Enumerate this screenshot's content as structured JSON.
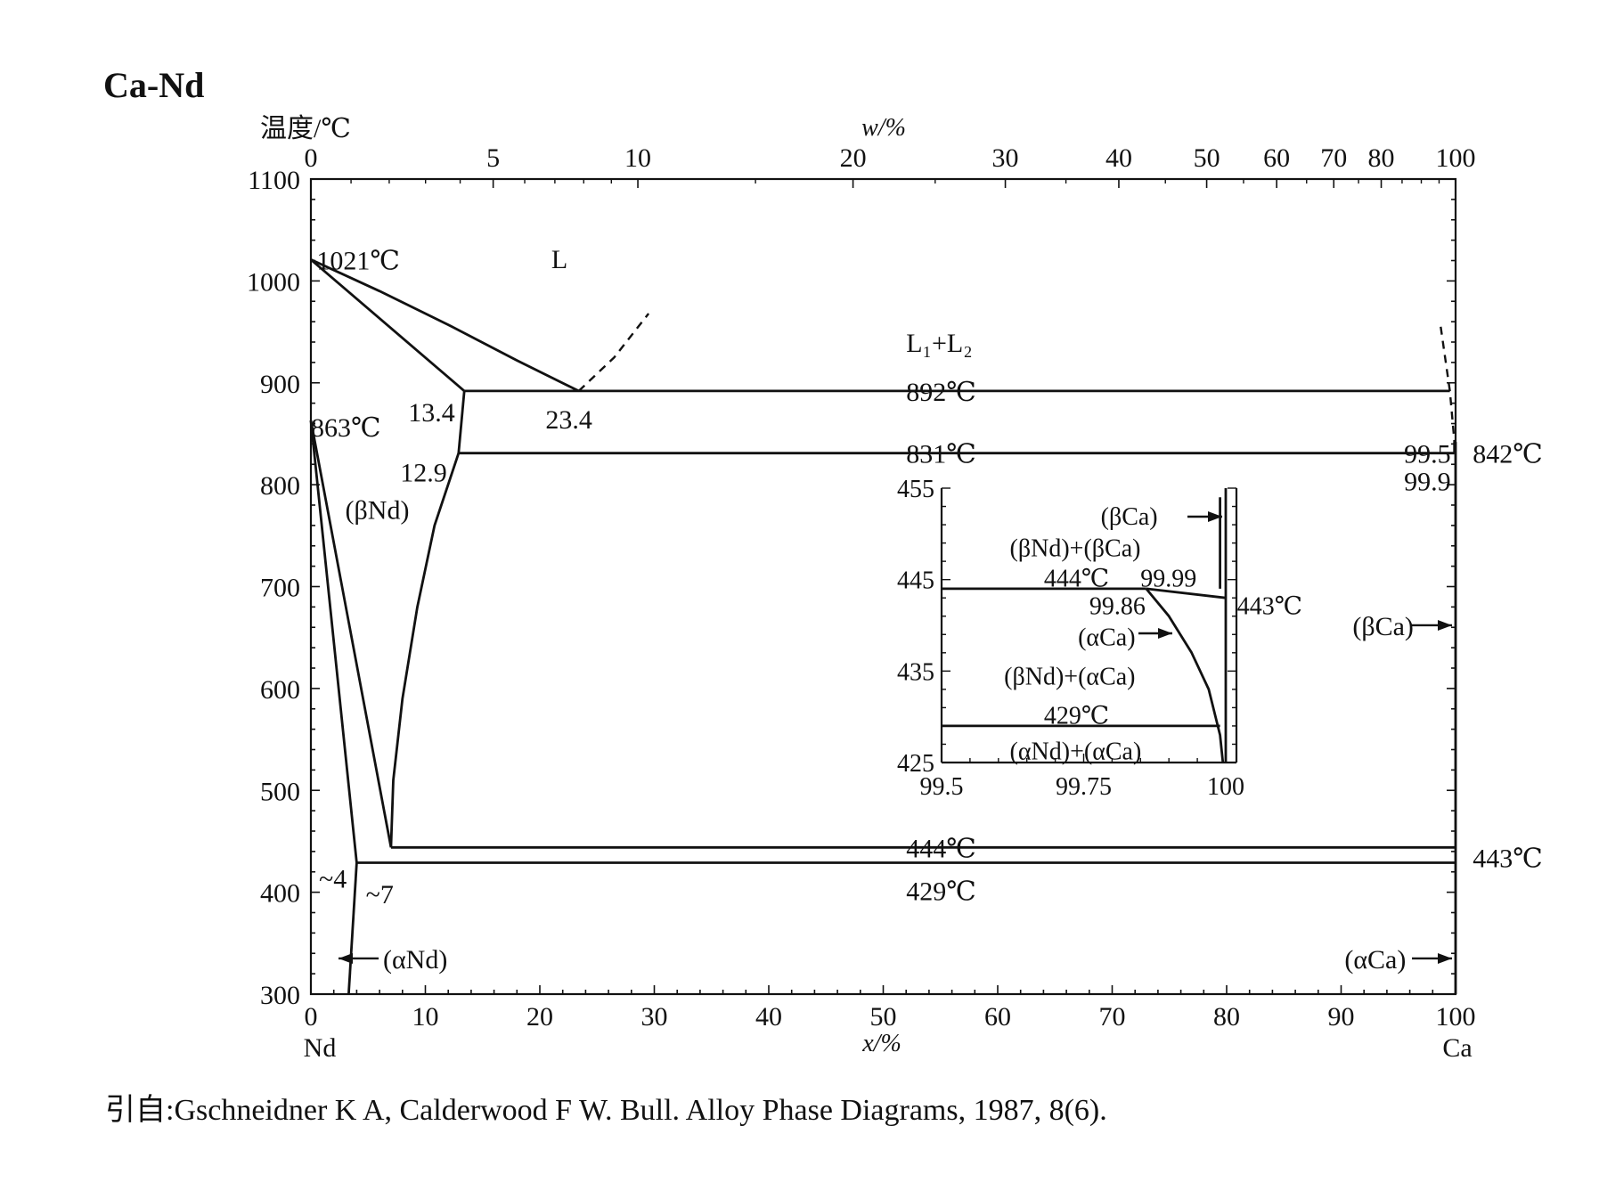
{
  "title": "Ca-Nd",
  "citation": "引自:Gschneidner K A, Calderwood F W. Bull. Alloy Phase Diagrams, 1987, 8(6).",
  "chart_data": [
    {
      "type": "line",
      "subtype": "binary phase diagram",
      "title": "Ca-Nd",
      "ylabel": "温度/℃",
      "xlabel": "x/%",
      "x2label": "w/%",
      "xlim": [
        0,
        100
      ],
      "ylim": [
        300,
        1100
      ],
      "yticks": [
        300,
        400,
        500,
        600,
        700,
        800,
        900,
        1000,
        1100
      ],
      "xticks": [
        0,
        10,
        20,
        30,
        40,
        50,
        60,
        70,
        80,
        90,
        100
      ],
      "x2ticks": [
        0,
        5,
        10,
        20,
        30,
        40,
        50,
        60,
        70,
        80,
        100
      ],
      "x_end_labels": [
        "Nd",
        "Ca"
      ],
      "series": [
        {
          "style": "solid",
          "points": [
            [
              0,
              1021
            ],
            [
              13.4,
              892
            ]
          ]
        },
        {
          "style": "solid",
          "points": [
            [
              0,
              1021
            ],
            [
              6,
              990
            ],
            [
              12,
              957
            ],
            [
              18,
              922
            ],
            [
              23.4,
              892
            ]
          ]
        },
        {
          "style": "dashed",
          "points": [
            [
              23.4,
              892
            ],
            [
              26.5,
              925
            ],
            [
              29.5,
              968
            ]
          ]
        },
        {
          "style": "dashed",
          "points": [
            [
              98.7,
              955
            ],
            [
              99.5,
              892
            ],
            [
              99.9,
              842
            ]
          ]
        },
        {
          "style": "solid",
          "points": [
            [
              13.4,
              892
            ],
            [
              12.9,
              831
            ]
          ]
        },
        {
          "style": "solid",
          "points": [
            [
              12.9,
              831
            ],
            [
              10.8,
              760
            ],
            [
              9.3,
              680
            ],
            [
              8.0,
              590
            ],
            [
              7.2,
              510
            ],
            [
              7.0,
              444
            ]
          ]
        },
        {
          "style": "solid",
          "points": [
            [
              0,
              863
            ],
            [
              7,
              444
            ]
          ]
        },
        {
          "style": "solid",
          "points": [
            [
              0,
              863
            ],
            [
              4,
              429
            ]
          ]
        },
        {
          "style": "solid",
          "points": [
            [
              4,
              429
            ],
            [
              3.3,
              300
            ]
          ]
        },
        {
          "style": "solid",
          "points": [
            [
              13.4,
              892
            ],
            [
              99.5,
              892
            ]
          ]
        },
        {
          "style": "solid",
          "points": [
            [
              12.9,
              831
            ],
            [
              99.9,
              831
            ]
          ]
        },
        {
          "style": "solid",
          "points": [
            [
              7,
              444
            ],
            [
              100,
              444
            ]
          ]
        },
        {
          "style": "solid",
          "points": [
            [
              4,
              429
            ],
            [
              100,
              429
            ]
          ]
        },
        {
          "style": "solid",
          "points": [
            [
              99.9,
              831
            ],
            [
              99.9,
              842
            ],
            [
              100,
              842
            ]
          ]
        },
        {
          "style": "solid",
          "points": [
            [
              100,
              300
            ],
            [
              100,
              842
            ]
          ]
        }
      ],
      "annotations": [
        {
          "text": "1021℃",
          "x": 0.5,
          "y": 1021
        },
        {
          "text": "L",
          "x": 21,
          "y": 1022
        },
        {
          "text": "L₁+L₂",
          "x": 52,
          "y": 940
        },
        {
          "text": "892℃",
          "x": 52,
          "y": 892
        },
        {
          "text": "13.4",
          "x": 8.5,
          "y": 872
        },
        {
          "text": "23.4",
          "x": 20.5,
          "y": 865
        },
        {
          "text": "863℃",
          "x": 0,
          "y": 857
        },
        {
          "text": "12.9",
          "x": 7.8,
          "y": 813
        },
        {
          "text": "831℃",
          "x": 52,
          "y": 831
        },
        {
          "text": "99.5",
          "x": 95.5,
          "y": 831
        },
        {
          "text": "842℃",
          "x": 101.5,
          "y": 831
        },
        {
          "text": "99.9",
          "x": 95.5,
          "y": 804
        },
        {
          "text": "(βNd)",
          "x": 3,
          "y": 776
        },
        {
          "text": "(βCa)",
          "x": 91,
          "y": 662
        },
        {
          "text": "444℃",
          "x": 52,
          "y": 444
        },
        {
          "text": "443℃",
          "x": 101.5,
          "y": 434
        },
        {
          "text": "~4",
          "x": 0.7,
          "y": 414
        },
        {
          "text": "~7",
          "x": 4.8,
          "y": 399
        },
        {
          "text": "429℃",
          "x": 52,
          "y": 402
        },
        {
          "text": "(αNd)",
          "x": 6.3,
          "y": 335
        },
        {
          "text": "(αCa)",
          "x": 90.3,
          "y": 335
        }
      ]
    },
    {
      "type": "line",
      "subtype": "inset detail",
      "xlim": [
        99.5,
        100
      ],
      "ylim": [
        425,
        455
      ],
      "xticks": [
        99.5,
        99.75,
        100
      ],
      "yticks": [
        425,
        435,
        445,
        455
      ],
      "series": [
        {
          "style": "solid",
          "points": [
            [
              99.5,
              444
            ],
            [
              99.86,
              444
            ]
          ]
        },
        {
          "style": "solid",
          "points": [
            [
              99.86,
              444
            ],
            [
              100,
              443
            ]
          ]
        },
        {
          "style": "solid",
          "points": [
            [
              99.86,
              444
            ],
            [
              99.9,
              441
            ],
            [
              99.94,
              437
            ],
            [
              99.97,
              433
            ],
            [
              99.99,
              428
            ],
            [
              99.995,
              425
            ]
          ]
        },
        {
          "style": "solid",
          "points": [
            [
              99.5,
              429
            ],
            [
              99.99,
              429
            ]
          ]
        },
        {
          "style": "solid",
          "points": [
            [
              99.99,
              454
            ],
            [
              99.99,
              444
            ]
          ]
        },
        {
          "style": "solid",
          "points": [
            [
              100,
              455
            ],
            [
              100,
              425
            ]
          ]
        }
      ],
      "annotations": [
        {
          "text": "(βCa)",
          "x": 99.78,
          "y": 452
        },
        {
          "text": "(βNd)+(βCa)",
          "x": 99.62,
          "y": 448.5
        },
        {
          "text": "444℃",
          "x": 99.68,
          "y": 445.2
        },
        {
          "text": "99.99",
          "x": 99.85,
          "y": 445.2
        },
        {
          "text": "99.86",
          "x": 99.76,
          "y": 442.2
        },
        {
          "text": "443℃",
          "x": 100.02,
          "y": 442.2
        },
        {
          "text": "(αCa)",
          "x": 99.74,
          "y": 438.8
        },
        {
          "text": "(βNd)+(αCa)",
          "x": 99.61,
          "y": 434.5
        },
        {
          "text": "429℃",
          "x": 99.68,
          "y": 430.2
        },
        {
          "text": "(αNd)+(αCa)",
          "x": 99.62,
          "y": 426.3
        }
      ]
    }
  ]
}
